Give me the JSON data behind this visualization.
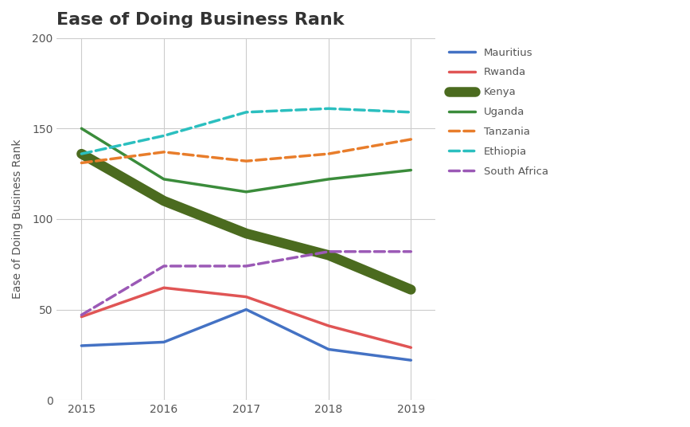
{
  "title": "Ease of Doing Business Rank",
  "ylabel": "Ease of Doing Business Rank",
  "years": [
    2015,
    2016,
    2017,
    2018,
    2019
  ],
  "series": [
    {
      "name": "Mauritius",
      "values": [
        30,
        32,
        50,
        28,
        22
      ],
      "color": "#4472C4",
      "linestyle": "solid",
      "linewidth": 2.5,
      "marker": null
    },
    {
      "name": "Rwanda",
      "values": [
        46,
        62,
        57,
        41,
        29
      ],
      "color": "#E05555",
      "linestyle": "solid",
      "linewidth": 2.5,
      "marker": null
    },
    {
      "name": "Kenya",
      "values": [
        136,
        110,
        92,
        80,
        61
      ],
      "color": "#4B6B1F",
      "linestyle": "solid",
      "linewidth": 9,
      "marker": null
    },
    {
      "name": "Uganda",
      "values": [
        150,
        122,
        115,
        122,
        127
      ],
      "color": "#3B8C3B",
      "linestyle": "solid",
      "linewidth": 2.5,
      "marker": null
    },
    {
      "name": "Tanzania",
      "values": [
        131,
        137,
        132,
        136,
        144
      ],
      "color": "#E87D2B",
      "linestyle": "dashed",
      "linewidth": 2.5,
      "marker": null
    },
    {
      "name": "Ethiopia",
      "values": [
        136,
        146,
        159,
        161,
        159
      ],
      "color": "#2BBFBF",
      "linestyle": "dashed",
      "linewidth": 2.5,
      "marker": null
    },
    {
      "name": "South Africa",
      "values": [
        47,
        74,
        74,
        82,
        82
      ],
      "color": "#9B59B6",
      "linestyle": "dashed",
      "linewidth": 2.5,
      "marker": null
    }
  ],
  "ylim": [
    0,
    200
  ],
  "yticks": [
    0,
    50,
    100,
    150,
    200
  ],
  "background_color": "#ffffff",
  "grid_color": "#cccccc",
  "title_fontsize": 16,
  "label_fontsize": 10
}
